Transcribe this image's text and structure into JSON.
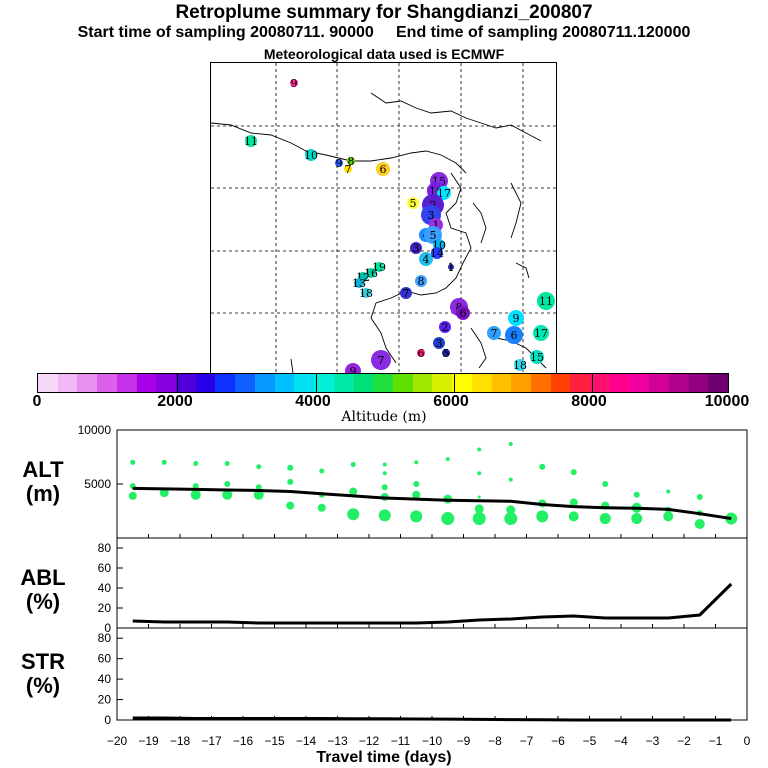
{
  "header": {
    "title": "Retroplume summary for Shangdianzi_200807",
    "sampling_line": "Start time of sampling 20080711. 90000     End time of sampling 20080711.120000",
    "met_line": "Meteorological data used is ECMWF"
  },
  "map": {
    "markers": [
      {
        "label": "9",
        "color": "#ff3399"
      },
      {
        "label": "11",
        "color": "#00e5a0"
      },
      {
        "label": "10",
        "color": "#00d8c8"
      },
      {
        "label": "9",
        "color": "#2a5cff"
      },
      {
        "label": "8",
        "color": "#66d000"
      },
      {
        "label": "7",
        "color": "#ffe000"
      },
      {
        "label": "6",
        "color": "#ffcc22"
      },
      {
        "label": "5",
        "color": "#ffff33"
      },
      {
        "label": "15",
        "color": "#8a2be2"
      },
      {
        "label": "16",
        "color": "#7a1fe0"
      },
      {
        "label": "17",
        "color": "#00e5ff"
      },
      {
        "label": "2",
        "color": "#5a20d0"
      },
      {
        "label": "3",
        "color": "#3344ee"
      },
      {
        "label": "1",
        "color": "#9a30e0"
      },
      {
        "label": "4",
        "color": "#1a8cff"
      },
      {
        "label": "5",
        "color": "#3aa0ff"
      },
      {
        "label": "10",
        "color": "#00b4f0"
      },
      {
        "label": "3",
        "color": "#4020c0"
      },
      {
        "label": "4",
        "color": "#20c0f0"
      },
      {
        "label": "14",
        "color": "#2040ff"
      },
      {
        "label": "19",
        "color": "#00e5a0"
      },
      {
        "label": "16",
        "color": "#00d0a0"
      },
      {
        "label": "12",
        "color": "#00c0b0"
      },
      {
        "label": "13",
        "color": "#10b0d0"
      },
      {
        "label": "18",
        "color": "#30d0e0"
      },
      {
        "label": "7",
        "color": "#3030d0"
      },
      {
        "label": "8",
        "color": "#40a0ff"
      },
      {
        "label": "1",
        "color": "#2020a0"
      },
      {
        "label": "8",
        "color": "#8a2be2"
      },
      {
        "label": "6",
        "color": "#7a10c0"
      },
      {
        "label": "2",
        "color": "#5a20f0"
      },
      {
        "label": "3",
        "color": "#2040d0"
      },
      {
        "label": "9",
        "color": "#00e0ff"
      },
      {
        "label": "6",
        "color": "#1a80ff"
      },
      {
        "label": "7",
        "color": "#30a0ff"
      },
      {
        "label": "11",
        "color": "#00e5a0"
      },
      {
        "label": "17",
        "color": "#00e8b0"
      },
      {
        "label": "15",
        "color": "#00e0c0"
      },
      {
        "label": "18",
        "color": "#30d8f0"
      },
      {
        "label": "7",
        "color": "#8a2be2"
      },
      {
        "label": "6",
        "color": "#ff2080"
      },
      {
        "label": "5",
        "color": "#2020a0"
      },
      {
        "label": "9",
        "color": "#9a20e0"
      }
    ]
  },
  "colorbar": {
    "label": "Altitude (m)",
    "ticks": [
      "0",
      "2000",
      "4000",
      "6000",
      "8000",
      "10000"
    ],
    "colors": [
      "#f8d8f8",
      "#f0b8f4",
      "#e890f0",
      "#dc60ec",
      "#c830e8",
      "#a800e8",
      "#8800e0",
      "#5000d8",
      "#2800e8",
      "#1030ff",
      "#1060ff",
      "#0898ff",
      "#00c0ff",
      "#00e0f0",
      "#00f0d8",
      "#00e8a8",
      "#00e078",
      "#20e040",
      "#60e000",
      "#a0e800",
      "#d8f000",
      "#ffff00",
      "#ffe000",
      "#ffc000",
      "#ffa000",
      "#ff7000",
      "#ff4000",
      "#ff2040",
      "#ff1070",
      "#ff0090",
      "#f000a0",
      "#d00098",
      "#b0008c",
      "#900080",
      "#700070"
    ]
  },
  "chart_data": [
    {
      "type": "scatter+line",
      "name": "ALT",
      "ylabel": "ALT\n(m)",
      "ylim": [
        0,
        10000
      ],
      "yticks": [
        5000,
        10000
      ],
      "xlim": [
        -20,
        0
      ],
      "line": {
        "x": [
          -19.5,
          -18.5,
          -17.5,
          -16.5,
          -15.5,
          -14.5,
          -13.5,
          -12.5,
          -11.5,
          -10.5,
          -9.5,
          -8.5,
          -7.5,
          -6.5,
          -5.5,
          -4.5,
          -3.5,
          -2.5,
          -1.5,
          -0.5
        ],
        "y": [
          4600,
          4550,
          4500,
          4450,
          4400,
          4300,
          4100,
          3900,
          3700,
          3600,
          3500,
          3450,
          3400,
          3100,
          2900,
          2800,
          2750,
          2650,
          2250,
          1800
        ]
      },
      "points": [
        {
          "x": -19.5,
          "y": 7000,
          "r": 2.5
        },
        {
          "x": -19.5,
          "y": 4800,
          "r": 3
        },
        {
          "x": -19.5,
          "y": 3900,
          "r": 4
        },
        {
          "x": -18.5,
          "y": 7000,
          "r": 2.5
        },
        {
          "x": -18.5,
          "y": 4200,
          "r": 4.5
        },
        {
          "x": -17.5,
          "y": 6900,
          "r": 2.5
        },
        {
          "x": -17.5,
          "y": 4800,
          "r": 3
        },
        {
          "x": -17.5,
          "y": 4000,
          "r": 5
        },
        {
          "x": -16.5,
          "y": 6900,
          "r": 2.5
        },
        {
          "x": -16.5,
          "y": 5000,
          "r": 3
        },
        {
          "x": -16.5,
          "y": 4000,
          "r": 5
        },
        {
          "x": -15.5,
          "y": 6600,
          "r": 2.5
        },
        {
          "x": -15.5,
          "y": 4700,
          "r": 3
        },
        {
          "x": -15.5,
          "y": 4000,
          "r": 5
        },
        {
          "x": -14.5,
          "y": 6500,
          "r": 3
        },
        {
          "x": -14.5,
          "y": 5200,
          "r": 3
        },
        {
          "x": -14.5,
          "y": 3000,
          "r": 4
        },
        {
          "x": -13.5,
          "y": 6200,
          "r": 2.5
        },
        {
          "x": -13.5,
          "y": 4000,
          "r": 3
        },
        {
          "x": -13.5,
          "y": 2800,
          "r": 4
        },
        {
          "x": -12.5,
          "y": 6800,
          "r": 2.5
        },
        {
          "x": -12.5,
          "y": 4300,
          "r": 4
        },
        {
          "x": -12.5,
          "y": 2200,
          "r": 6
        },
        {
          "x": -11.5,
          "y": 6800,
          "r": 2
        },
        {
          "x": -11.5,
          "y": 6000,
          "r": 2
        },
        {
          "x": -11.5,
          "y": 4700,
          "r": 3
        },
        {
          "x": -11.5,
          "y": 3800,
          "r": 4
        },
        {
          "x": -11.5,
          "y": 2100,
          "r": 6
        },
        {
          "x": -10.5,
          "y": 7000,
          "r": 2
        },
        {
          "x": -10.5,
          "y": 5000,
          "r": 3
        },
        {
          "x": -10.5,
          "y": 4000,
          "r": 4
        },
        {
          "x": -10.5,
          "y": 2000,
          "r": 6
        },
        {
          "x": -9.5,
          "y": 7300,
          "r": 2
        },
        {
          "x": -9.5,
          "y": 3600,
          "r": 4.5
        },
        {
          "x": -9.5,
          "y": 1800,
          "r": 6.5
        },
        {
          "x": -8.5,
          "y": 8200,
          "r": 2
        },
        {
          "x": -8.5,
          "y": 6000,
          "r": 2
        },
        {
          "x": -8.5,
          "y": 3800,
          "r": 1.5
        },
        {
          "x": -8.5,
          "y": 2700,
          "r": 4.5
        },
        {
          "x": -8.5,
          "y": 1800,
          "r": 6.5
        },
        {
          "x": -7.5,
          "y": 8700,
          "r": 2
        },
        {
          "x": -7.5,
          "y": 5400,
          "r": 2
        },
        {
          "x": -7.5,
          "y": 2600,
          "r": 4.5
        },
        {
          "x": -7.5,
          "y": 1800,
          "r": 6.5
        },
        {
          "x": -6.5,
          "y": 6600,
          "r": 3
        },
        {
          "x": -6.5,
          "y": 3200,
          "r": 4
        },
        {
          "x": -6.5,
          "y": 2000,
          "r": 6
        },
        {
          "x": -5.5,
          "y": 6100,
          "r": 3
        },
        {
          "x": -5.5,
          "y": 3300,
          "r": 4
        },
        {
          "x": -5.5,
          "y": 2000,
          "r": 5
        },
        {
          "x": -4.5,
          "y": 5000,
          "r": 3
        },
        {
          "x": -4.5,
          "y": 3000,
          "r": 4
        },
        {
          "x": -4.5,
          "y": 1800,
          "r": 5.5
        },
        {
          "x": -3.5,
          "y": 4000,
          "r": 3
        },
        {
          "x": -3.5,
          "y": 2800,
          "r": 5
        },
        {
          "x": -3.5,
          "y": 1800,
          "r": 5.5
        },
        {
          "x": -2.5,
          "y": 4300,
          "r": 2
        },
        {
          "x": -2.5,
          "y": 2600,
          "r": 3
        },
        {
          "x": -2.5,
          "y": 2000,
          "r": 5
        },
        {
          "x": -1.5,
          "y": 3800,
          "r": 3
        },
        {
          "x": -1.5,
          "y": 2300,
          "r": 3
        },
        {
          "x": -1.5,
          "y": 1300,
          "r": 5
        },
        {
          "x": -0.5,
          "y": 1800,
          "r": 6
        }
      ]
    },
    {
      "type": "line",
      "name": "ABL",
      "ylabel": "ABL\n(%)",
      "ylim": [
        0,
        90
      ],
      "yticks": [
        0,
        20,
        40,
        60,
        80
      ],
      "xlim": [
        -20,
        0
      ],
      "x": [
        -19.5,
        -18.5,
        -17.5,
        -16.5,
        -15.5,
        -14.5,
        -13.5,
        -12.5,
        -11.5,
        -10.5,
        -9.5,
        -8.5,
        -7.5,
        -6.5,
        -5.5,
        -4.5,
        -3.5,
        -2.5,
        -1.5,
        -0.5
      ],
      "y": [
        7,
        6,
        6,
        6,
        5,
        5,
        5,
        5,
        5,
        5,
        6,
        8,
        9,
        11,
        12,
        10,
        10,
        10,
        13,
        44
      ]
    },
    {
      "type": "line",
      "name": "STR",
      "ylabel": "STR\n(%)",
      "ylim": [
        0,
        90
      ],
      "yticks": [
        0,
        20,
        40,
        60,
        80
      ],
      "xlim": [
        -20,
        0
      ],
      "x": [
        -19.5,
        -18.5,
        -17.5,
        -16.5,
        -15.5,
        -14.5,
        -13.5,
        -12.5,
        -11.5,
        -10.5,
        -9.5,
        -8.5,
        -7.5,
        -6.5,
        -5.5,
        -4.5,
        -3.5,
        -2.5,
        -1.5,
        -0.5
      ],
      "y": [
        2,
        2,
        1.5,
        1.5,
        1.5,
        1.5,
        1.5,
        1.2,
        1.2,
        1,
        0.8,
        0.6,
        0.4,
        0.2,
        0,
        0,
        0,
        0,
        0,
        0
      ]
    }
  ],
  "xaxis": {
    "label": "Travel time (days)",
    "ticks": [
      "−20",
      "−19",
      "−18",
      "−17",
      "−16",
      "−15",
      "−14",
      "−13",
      "−12",
      "−11",
      "−10",
      "−9",
      "−8",
      "−7",
      "−6",
      "−5",
      "−4",
      "−3",
      "−2",
      "−1",
      "0"
    ]
  }
}
